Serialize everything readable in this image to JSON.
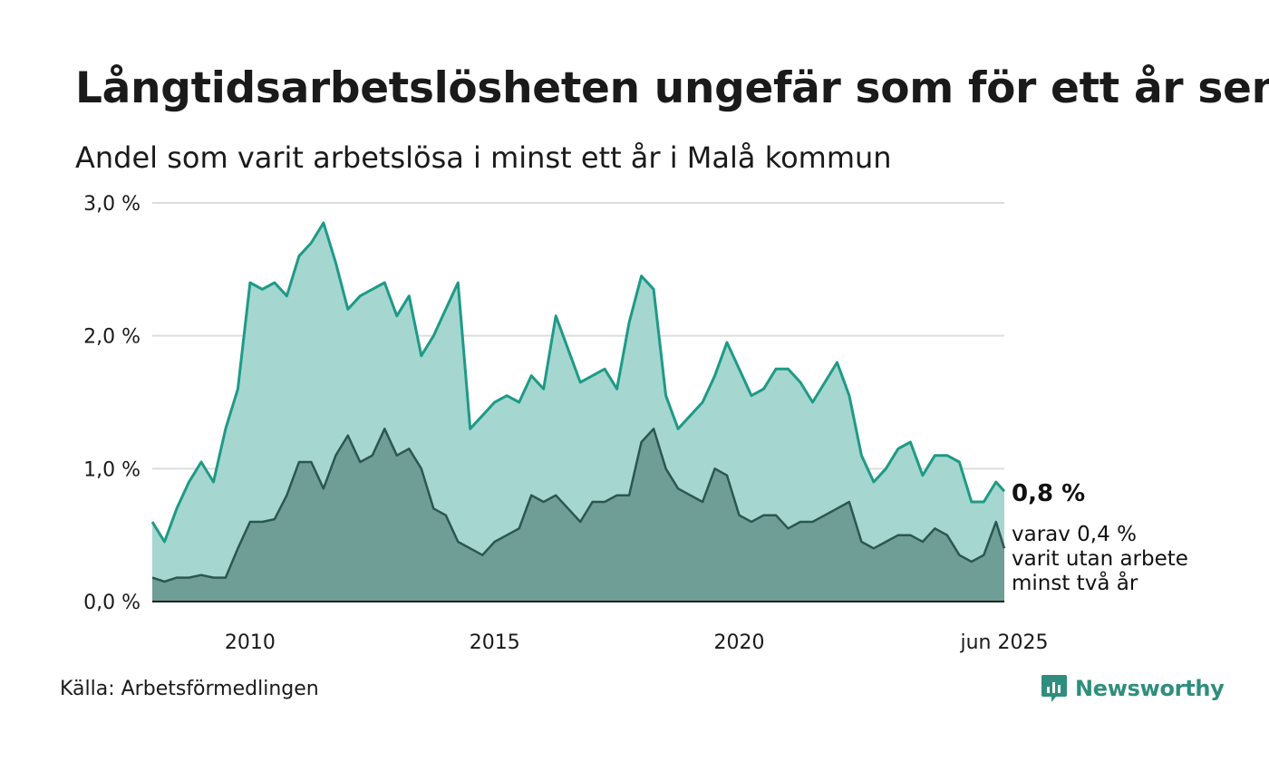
{
  "title": "Långtidsarbetslösheten ungefär som för ett år sen",
  "subtitle": "Andel som varit arbetslösa i minst ett år i Malå kommun",
  "source": "Källa: Arbetsförmedlingen",
  "brand": {
    "name": "Newsworthy",
    "icon": "newsworthy-logo-icon",
    "color": "#2f8e7d"
  },
  "colors": {
    "series1_line": "#1e9a86",
    "series1_fill": "#a5d6cf",
    "series2_line": "#2c574e",
    "series2_fill": "#6f9e96",
    "grid": "#dddddd",
    "axis": "#222222"
  },
  "chart_data": {
    "type": "area",
    "title": "Långtidsarbetslösheten ungefär som för ett år sen",
    "subtitle": "Andel som varit arbetslösa i minst ett år i Malå kommun",
    "x_ticks": [
      "2010",
      "2015",
      "2020",
      "jun 2025"
    ],
    "y_ticks": [
      "0,0 %",
      "1,0 %",
      "2,0 %",
      "3,0 %"
    ],
    "ylim": [
      0,
      3.0
    ],
    "xlim": [
      2008.0,
      2025.42
    ],
    "grid": true,
    "x": [
      2008.0,
      2008.25,
      2008.5,
      2008.75,
      2009.0,
      2009.25,
      2009.5,
      2009.75,
      2010.0,
      2010.25,
      2010.5,
      2010.75,
      2011.0,
      2011.25,
      2011.5,
      2011.75,
      2012.0,
      2012.25,
      2012.5,
      2012.75,
      2013.0,
      2013.25,
      2013.5,
      2013.75,
      2014.0,
      2014.25,
      2014.5,
      2014.75,
      2015.0,
      2015.25,
      2015.5,
      2015.75,
      2016.0,
      2016.25,
      2016.5,
      2016.75,
      2017.0,
      2017.25,
      2017.5,
      2017.75,
      2018.0,
      2018.25,
      2018.5,
      2018.75,
      2019.0,
      2019.25,
      2019.5,
      2019.75,
      2020.0,
      2020.25,
      2020.5,
      2020.75,
      2021.0,
      2021.25,
      2021.5,
      2021.75,
      2022.0,
      2022.25,
      2022.5,
      2022.75,
      2023.0,
      2023.25,
      2023.5,
      2023.75,
      2024.0,
      2024.25,
      2024.5,
      2024.75,
      2025.0,
      2025.25,
      2025.42
    ],
    "series": [
      {
        "name": "",
        "values": [
          0.6,
          0.45,
          0.7,
          0.9,
          1.05,
          0.9,
          1.3,
          1.6,
          2.4,
          2.35,
          2.4,
          2.3,
          2.6,
          2.7,
          2.85,
          2.55,
          2.2,
          2.3,
          2.35,
          2.4,
          2.15,
          2.3,
          1.85,
          2.0,
          2.2,
          2.4,
          1.3,
          1.4,
          1.5,
          1.55,
          1.5,
          1.7,
          1.6,
          2.15,
          1.9,
          1.65,
          1.7,
          1.75,
          1.6,
          2.1,
          2.45,
          2.35,
          1.55,
          1.3,
          1.4,
          1.5,
          1.7,
          1.95,
          1.75,
          1.55,
          1.6,
          1.75,
          1.75,
          1.65,
          1.5,
          1.65,
          1.8,
          1.55,
          1.1,
          0.9,
          1.0,
          1.15,
          1.2,
          0.95,
          1.1,
          1.1,
          1.05,
          0.75,
          0.75,
          0.9,
          0.83
        ]
      },
      {
        "name": "",
        "values": [
          0.18,
          0.15,
          0.18,
          0.18,
          0.2,
          0.18,
          0.18,
          0.4,
          0.6,
          0.6,
          0.62,
          0.8,
          1.05,
          1.05,
          0.85,
          1.1,
          1.25,
          1.05,
          1.1,
          1.3,
          1.1,
          1.15,
          1.0,
          0.7,
          0.65,
          0.45,
          0.4,
          0.35,
          0.45,
          0.5,
          0.55,
          0.8,
          0.75,
          0.8,
          0.7,
          0.6,
          0.75,
          0.75,
          0.8,
          0.8,
          1.2,
          1.3,
          1.0,
          0.85,
          0.8,
          0.75,
          1.0,
          0.95,
          0.65,
          0.6,
          0.65,
          0.65,
          0.55,
          0.6,
          0.6,
          0.65,
          0.7,
          0.75,
          0.45,
          0.4,
          0.45,
          0.5,
          0.5,
          0.45,
          0.55,
          0.5,
          0.35,
          0.3,
          0.35,
          0.6,
          0.4
        ]
      }
    ],
    "annotations": {
      "end_value_main": "0,8 %",
      "end_value_sub": [
        "varav 0,4 %",
        "varit utan arbete",
        "minst två år"
      ]
    }
  }
}
